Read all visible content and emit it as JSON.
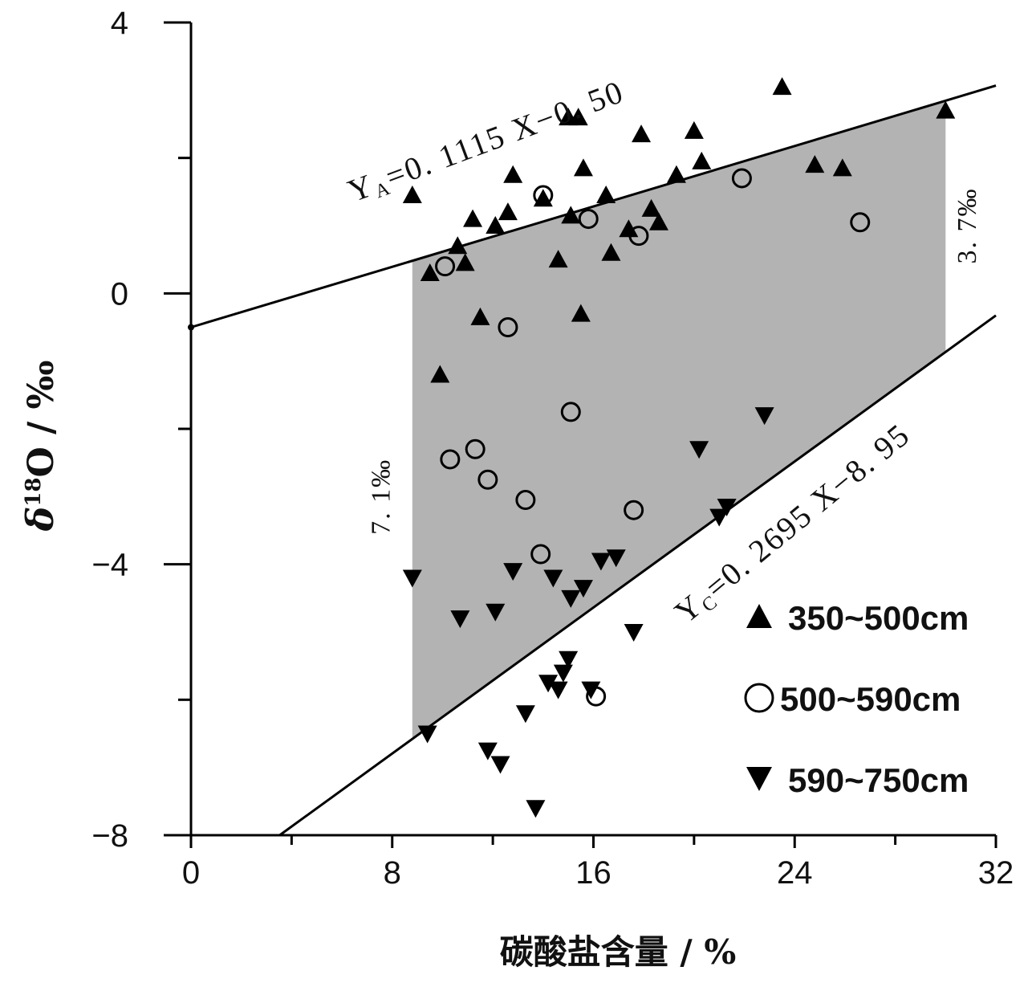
{
  "chart_data": {
    "type": "scatter",
    "title": "",
    "xlabel": "碳酸盐含量 / %",
    "ylabel": "δ18O / ‰",
    "ylabel_parts": {
      "delta": "δ",
      "sup": "18",
      "rest": "O / ‰"
    },
    "xlim": [
      0,
      32
    ],
    "ylim": [
      -8,
      4
    ],
    "xticks": [
      0,
      8,
      16,
      24,
      32
    ],
    "yticks": [
      4,
      0,
      -4,
      -8
    ],
    "grid": false,
    "legend_position": "bottom-right",
    "series": [
      {
        "name": "350~500cm",
        "marker": "triangle-up",
        "fill": "#000000",
        "points": [
          [
            8.8,
            1.45
          ],
          [
            9.5,
            0.3
          ],
          [
            9.9,
            -1.2
          ],
          [
            10.6,
            0.7
          ],
          [
            10.9,
            0.45
          ],
          [
            11.2,
            1.1
          ],
          [
            11.5,
            -0.35
          ],
          [
            12.1,
            1.0
          ],
          [
            12.6,
            1.2
          ],
          [
            12.8,
            1.75
          ],
          [
            14.0,
            1.4
          ],
          [
            14.6,
            0.5
          ],
          [
            15.0,
            2.6
          ],
          [
            15.1,
            1.15
          ],
          [
            15.4,
            2.6
          ],
          [
            15.5,
            -0.3
          ],
          [
            15.6,
            1.85
          ],
          [
            16.5,
            1.45
          ],
          [
            16.7,
            0.6
          ],
          [
            17.4,
            0.95
          ],
          [
            17.9,
            2.35
          ],
          [
            18.3,
            1.25
          ],
          [
            18.6,
            1.05
          ],
          [
            19.3,
            1.75
          ],
          [
            20.0,
            2.4
          ],
          [
            20.3,
            1.95
          ],
          [
            23.5,
            3.05
          ],
          [
            24.8,
            1.9
          ],
          [
            25.9,
            1.85
          ],
          [
            30.0,
            2.7
          ]
        ]
      },
      {
        "name": "500~590cm",
        "marker": "circle-open",
        "fill": "none",
        "points": [
          [
            10.1,
            0.4
          ],
          [
            10.3,
            -2.45
          ],
          [
            11.3,
            -2.3
          ],
          [
            11.8,
            -2.75
          ],
          [
            12.6,
            -0.5
          ],
          [
            13.3,
            -3.05
          ],
          [
            13.9,
            -3.85
          ],
          [
            14.0,
            1.45
          ],
          [
            15.1,
            -1.75
          ],
          [
            15.8,
            1.1
          ],
          [
            16.1,
            -5.95
          ],
          [
            17.6,
            -3.2
          ],
          [
            17.8,
            0.85
          ],
          [
            21.9,
            1.7
          ],
          [
            26.6,
            1.05
          ]
        ]
      },
      {
        "name": "590~750cm",
        "marker": "triangle-down",
        "fill": "#000000",
        "points": [
          [
            8.8,
            -4.2
          ],
          [
            9.4,
            -6.5
          ],
          [
            10.7,
            -4.8
          ],
          [
            11.8,
            -6.75
          ],
          [
            12.1,
            -4.7
          ],
          [
            12.3,
            -6.95
          ],
          [
            12.8,
            -4.1
          ],
          [
            13.3,
            -6.2
          ],
          [
            13.7,
            -7.6
          ],
          [
            14.2,
            -5.75
          ],
          [
            14.4,
            -4.2
          ],
          [
            14.6,
            -5.85
          ],
          [
            14.8,
            -5.6
          ],
          [
            15.0,
            -5.4
          ],
          [
            15.1,
            -4.5
          ],
          [
            15.6,
            -4.35
          ],
          [
            15.9,
            -5.85
          ],
          [
            16.3,
            -3.95
          ],
          [
            16.9,
            -3.9
          ],
          [
            17.6,
            -5.0
          ],
          [
            20.2,
            -2.3
          ],
          [
            21.0,
            -3.3
          ],
          [
            21.3,
            -3.15
          ],
          [
            22.8,
            -1.8
          ]
        ]
      }
    ],
    "lines": [
      {
        "name": "Y_A",
        "slope": 0.1115,
        "intercept": -0.5,
        "x_range": [
          0,
          32
        ],
        "label_main": "Y",
        "label_sub": "A",
        "label_rest": "=0. 1115 X−0. 50"
      },
      {
        "name": "Y_C",
        "slope": 0.2695,
        "intercept": -8.95,
        "x_range": [
          0,
          32
        ],
        "label_main": "Y",
        "label_sub": "C",
        "label_rest": "=0. 2695 X−8. 95"
      }
    ],
    "shaded_region": {
      "x_range": [
        8.8,
        30.0
      ],
      "upper": "Y_A",
      "lower": "Y_C",
      "color": "#b3b3b3"
    },
    "annotations": [
      {
        "text": "7. 1‰",
        "x": 7.9,
        "y": -3.0,
        "rotate": -90
      },
      {
        "text": "3. 7‰",
        "x": 31.2,
        "y": 1.0,
        "rotate": -90
      }
    ]
  }
}
